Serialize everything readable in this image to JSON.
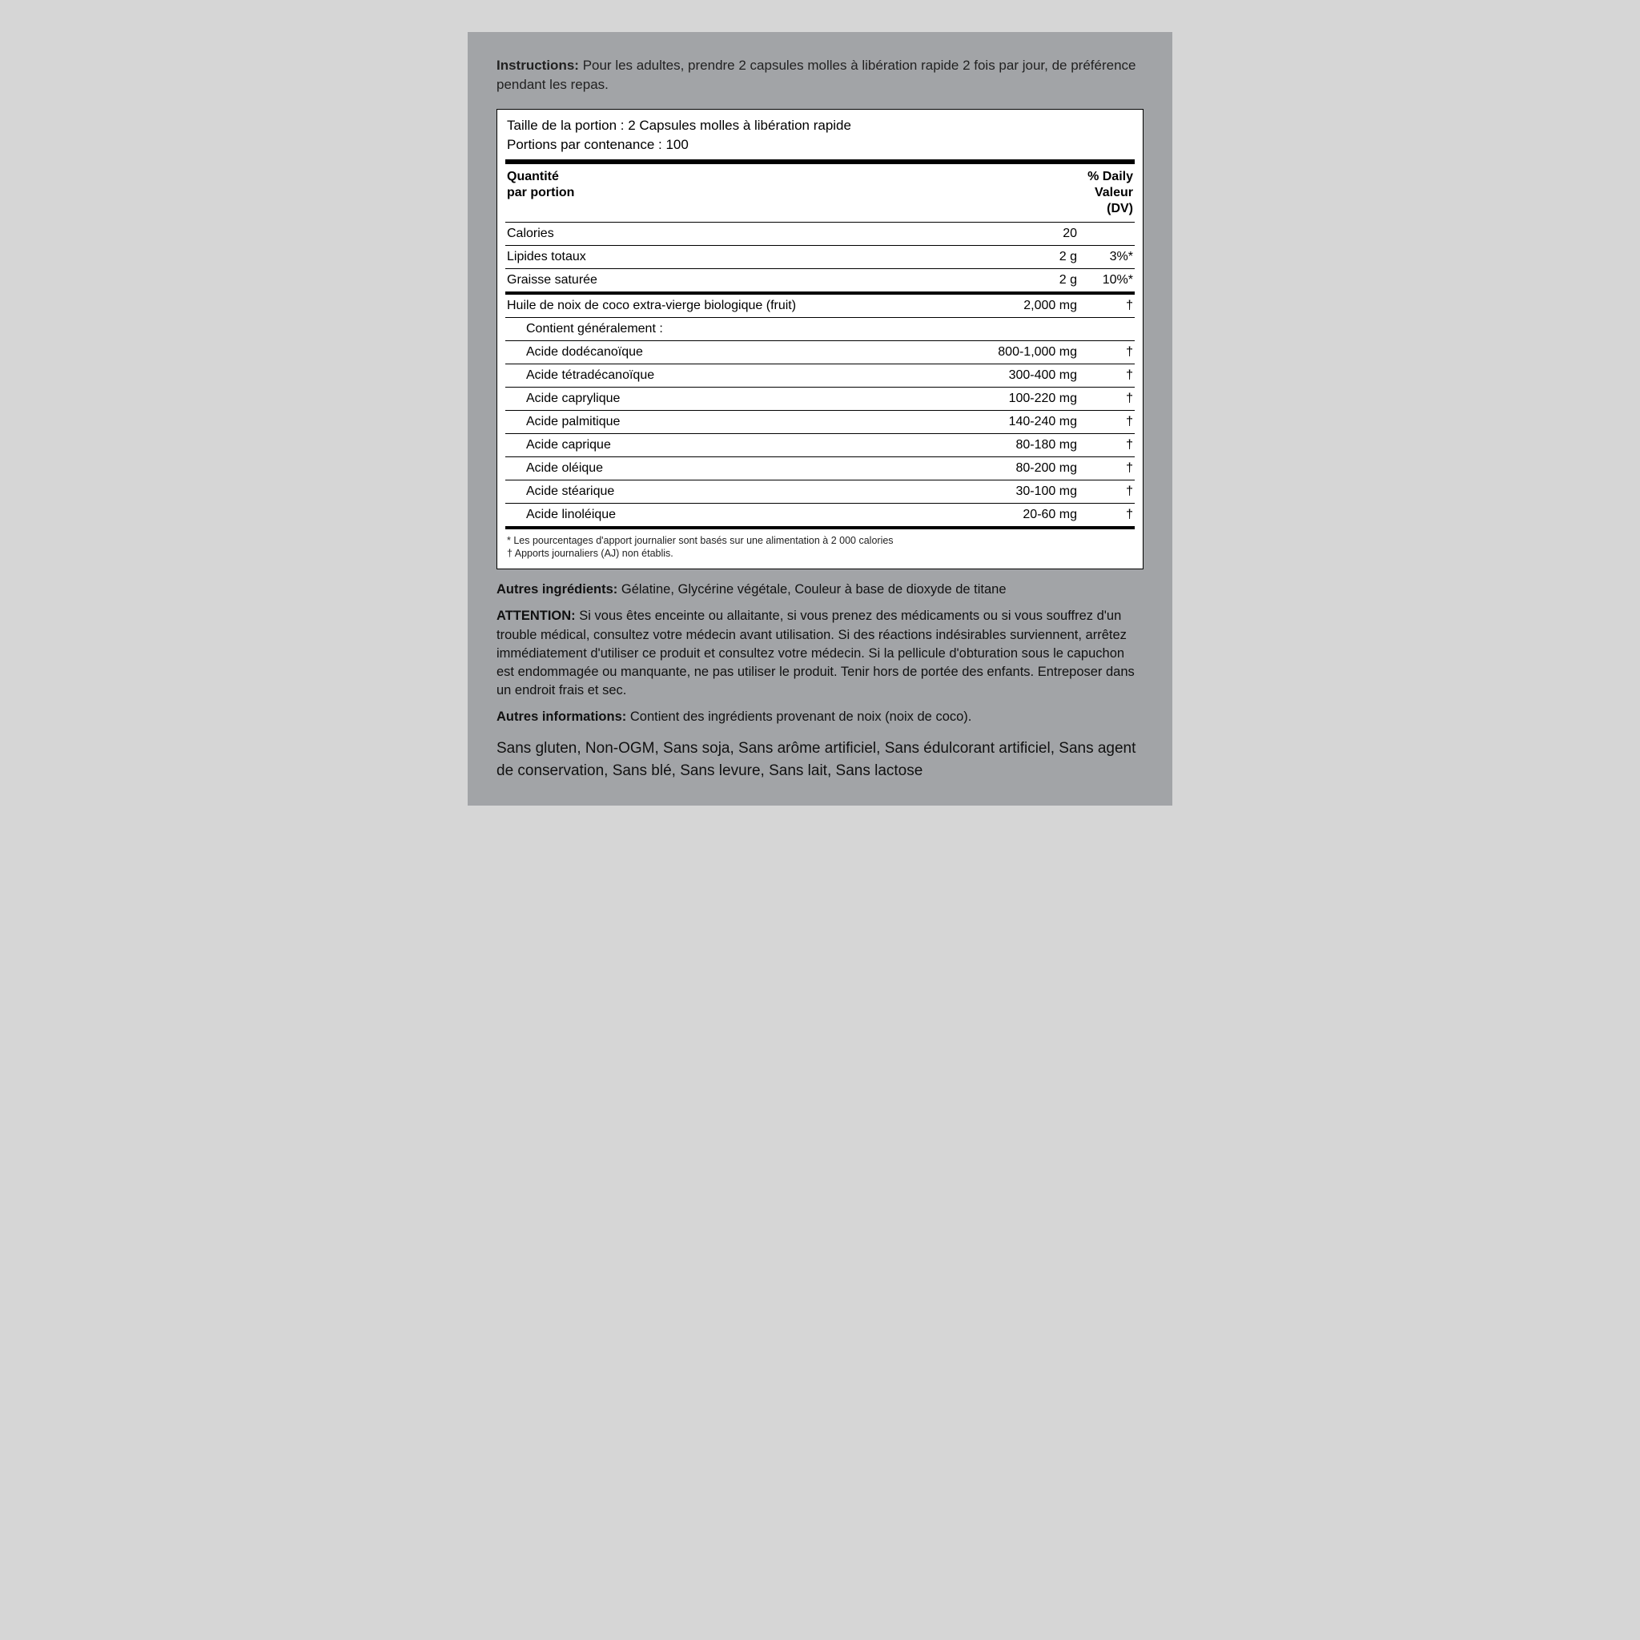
{
  "instructions": {
    "label": "Instructions:",
    "text": "Pour les adultes, prendre 2 capsules molles à libération rapide 2 fois par jour, de préférence pendant les repas."
  },
  "serving": {
    "size": "Taille de la portion : 2 Capsules molles à libération rapide",
    "per_container": "Portions par contenance : 100"
  },
  "columns": {
    "amount_l1": "Quantité",
    "amount_l2": "par portion",
    "dv_l1": "% Daily",
    "dv_l2": "Valeur",
    "dv_l3": "(DV)"
  },
  "rows": {
    "calories": {
      "name": "Calories",
      "amt": "20",
      "dv": ""
    },
    "totalfat": {
      "name": "Lipides totaux",
      "amt": "2 g",
      "dv": "3%*"
    },
    "satfat": {
      "name": "Graisse saturée",
      "amt": "2 g",
      "dv": "10%*"
    },
    "coconut": {
      "name": "Huile de noix de coco extra-vierge biologique (fruit)",
      "amt": "2,000 mg",
      "dv": "†"
    },
    "contains": {
      "name": "Contient généralement :",
      "amt": "",
      "dv": ""
    },
    "dodeca": {
      "name": "Acide dodécanoïque",
      "amt": "800-1,000 mg",
      "dv": "†"
    },
    "tetra": {
      "name": "Acide tétradécanoïque",
      "amt": "300-400 mg",
      "dv": "†"
    },
    "capryl": {
      "name": "Acide caprylique",
      "amt": "100-220 mg",
      "dv": "†"
    },
    "palm": {
      "name": "Acide palmitique",
      "amt": "140-240 mg",
      "dv": "†"
    },
    "capric": {
      "name": "Acide caprique",
      "amt": "80-180 mg",
      "dv": "†"
    },
    "oleic": {
      "name": "Acide oléique",
      "amt": "80-200 mg",
      "dv": "†"
    },
    "stearic": {
      "name": "Acide stéarique",
      "amt": "30-100 mg",
      "dv": "†"
    },
    "linoleic": {
      "name": "Acide linoléique",
      "amt": "20-60 mg",
      "dv": "†"
    }
  },
  "footnotes": {
    "a": "* Les pourcentages d'apport journalier sont basés sur une alimentation à 2 000 calories",
    "b": "† Apports journaliers (AJ) non établis."
  },
  "other_ing": {
    "label": "Autres ingrédients:",
    "text": "Gélatine, Glycérine végétale, Couleur à base de dioxyde de titane"
  },
  "attention": {
    "label": "ATTENTION:",
    "text": "Si vous êtes enceinte ou allaitante, si vous prenez des médicaments ou si vous souffrez d'un trouble médical, consultez votre médecin avant utilisation. Si des réactions indésirables surviennent, arrêtez immédiatement d'utiliser ce produit et consultez votre médecin. Si la pellicule d'obturation sous le capuchon est endommagée ou manquante, ne pas utiliser le produit. Tenir hors de portée des enfants. Entreposer dans un endroit frais et sec."
  },
  "other_info": {
    "label": "Autres informations:",
    "text": "Contient des ingrédients provenant de noix (noix de coco)."
  },
  "claims": "Sans gluten, Non-OGM, Sans soja, Sans arôme artificiel, Sans édulcorant artificiel, Sans agent de conservation, Sans blé, Sans levure, Sans lait, Sans lactose"
}
